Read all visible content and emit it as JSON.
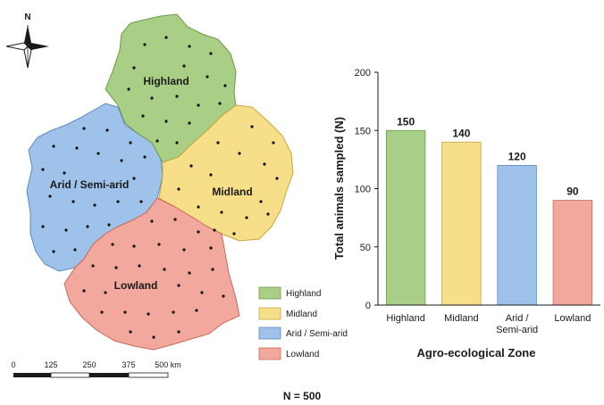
{
  "map": {
    "north_label": "N",
    "zones": [
      {
        "id": "highland",
        "label": "Highland",
        "color": "#a9cf86"
      },
      {
        "id": "midland",
        "label": "Midland",
        "color": "#f7df8a"
      },
      {
        "id": "arid",
        "label": "Arid / Semi-arid",
        "color": "#9fc2ea"
      },
      {
        "id": "lowland",
        "label": "Lowland",
        "color": "#f2a89c"
      }
    ],
    "legend": [
      {
        "label": "Highland",
        "color": "#a9cf86"
      },
      {
        "label": "Midland",
        "color": "#f7df8a"
      },
      {
        "label": "Arid / Semi-arid",
        "color": "#9fc2ea"
      },
      {
        "label": "Lowland",
        "color": "#f2a89c"
      }
    ],
    "scale_bar": {
      "ticks": [
        "0",
        "125",
        "250",
        "375",
        "500 km"
      ]
    }
  },
  "chart_data": {
    "type": "bar",
    "categories": [
      "Highland",
      "Midland",
      "Arid /\nSemi-arid",
      "Lowland"
    ],
    "values": [
      150,
      140,
      120,
      90
    ],
    "value_labels": [
      "150",
      "140",
      "120",
      "90"
    ],
    "colors": [
      "#a9cf86",
      "#f7df8a",
      "#9fc2ea",
      "#f2a89c"
    ],
    "xlabel": "Agro-ecological Zone",
    "ylabel": "Total animals sampled (N)",
    "ylim": [
      0,
      200
    ],
    "yticks": [
      0,
      50,
      100,
      150,
      200
    ],
    "grid": false
  },
  "footer": {
    "total_label": "N = 500"
  }
}
